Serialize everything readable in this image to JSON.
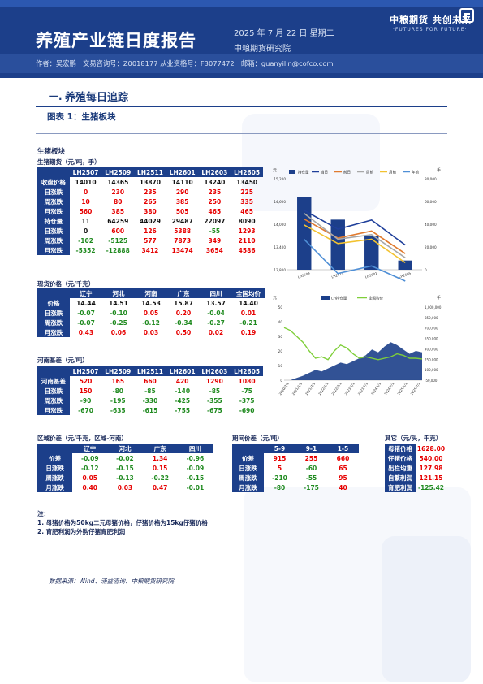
{
  "header": {
    "title": "养殖产业链日度报告",
    "date": "2025 年 7 月 22 日 星期二",
    "institute": "中粮期货研究院",
    "authors": "作者：吴宏鹏　交易咨询号：Z0018177 从业资格号：F3077472　邮箱：guanyilin@cofco.com",
    "logo_cn": "中粮期货 共创未来",
    "logo_en": "·FUTURES FOR FUTURE·"
  },
  "section": {
    "number": "一.",
    "title": "养殖每日追踪",
    "figure_title": "图表 1：生猪板块"
  },
  "board_title": "生猪板块",
  "futures": {
    "title": "生猪期货（元/吨，手）",
    "columns": [
      "",
      "LH2507",
      "LH2509",
      "LH2511",
      "LH2601",
      "LH2603",
      "LH2605"
    ],
    "rows": [
      {
        "label": "收盘价格",
        "values": [
          "14010",
          "14365",
          "13870",
          "14110",
          "13240",
          "13450"
        ],
        "tone": "blk"
      },
      {
        "label": "日涨跌",
        "values": [
          "0",
          "230",
          "235",
          "290",
          "235",
          "225"
        ],
        "tone": "red"
      },
      {
        "label": "周涨跌",
        "values": [
          "10",
          "80",
          "265",
          "385",
          "250",
          "335"
        ],
        "tone": "red"
      },
      {
        "label": "月涨跌",
        "values": [
          "560",
          "385",
          "380",
          "505",
          "465",
          "465"
        ],
        "tone": "red"
      },
      {
        "label": "持仓量",
        "values": [
          "11",
          "64259",
          "44029",
          "29487",
          "22097",
          "8090"
        ],
        "tone": "blk"
      },
      {
        "label": "日涨跌",
        "values": [
          "0",
          "600",
          "126",
          "5388",
          "-55",
          "1293"
        ],
        "tone": "mix"
      },
      {
        "label": "周涨跌",
        "values": [
          "-102",
          "-5125",
          "577",
          "7873",
          "349",
          "2110"
        ],
        "tone": "mix"
      },
      {
        "label": "月涨跌",
        "values": [
          "-5352",
          "-12888",
          "3412",
          "13474",
          "3654",
          "4586"
        ],
        "tone": "mix"
      }
    ]
  },
  "spot": {
    "title": "现货价格（元/千克）",
    "columns": [
      "",
      "辽宁",
      "河北",
      "河南",
      "广东",
      "四川",
      "全国均价"
    ],
    "rows": [
      {
        "label": "价格",
        "values": [
          "14.44",
          "14.51",
          "14.53",
          "15.87",
          "13.57",
          "14.40"
        ],
        "tone": "blk"
      },
      {
        "label": "日涨跌",
        "values": [
          "-0.07",
          "-0.10",
          "0.05",
          "0.20",
          "-0.04",
          "0.01"
        ],
        "tone": "mix"
      },
      {
        "label": "周涨跌",
        "values": [
          "-0.07",
          "-0.25",
          "-0.12",
          "-0.34",
          "-0.27",
          "-0.21"
        ],
        "tone": "mix"
      },
      {
        "label": "月涨跌",
        "values": [
          "0.43",
          "0.06",
          "0.03",
          "0.50",
          "0.02",
          "0.19"
        ],
        "tone": "red"
      }
    ]
  },
  "basis": {
    "title": "河南基差（元/吨）",
    "columns": [
      "",
      "LH2507",
      "LH2509",
      "LH2511",
      "LH2601",
      "LH2603",
      "LH2605"
    ],
    "rows": [
      {
        "label": "河南基差",
        "values": [
          "520",
          "165",
          "660",
          "420",
          "1290",
          "1080"
        ],
        "tone": "red"
      },
      {
        "label": "日涨跌",
        "values": [
          "150",
          "-80",
          "-85",
          "-140",
          "-85",
          "-75"
        ],
        "tone": "mix"
      },
      {
        "label": "周涨跌",
        "values": [
          "-90",
          "-195",
          "-330",
          "-425",
          "-355",
          "-375"
        ],
        "tone": "green"
      },
      {
        "label": "月涨跌",
        "values": [
          "-670",
          "-635",
          "-615",
          "-755",
          "-675",
          "-690"
        ],
        "tone": "green"
      }
    ]
  },
  "regional": {
    "title": "区域价差（元/千克，区域-河南）",
    "columns": [
      "",
      "辽宁",
      "河北",
      "广东",
      "四川"
    ],
    "rows": [
      {
        "label": "价差",
        "values": [
          "-0.09",
          "-0.02",
          "1.34",
          "-0.96"
        ],
        "tone": "mix"
      },
      {
        "label": "日涨跌",
        "values": [
          "-0.12",
          "-0.15",
          "0.15",
          "-0.09"
        ],
        "tone": "mix"
      },
      {
        "label": "周涨跌",
        "values": [
          "0.05",
          "-0.13",
          "-0.22",
          "-0.15"
        ],
        "tone": "mix"
      },
      {
        "label": "月涨跌",
        "values": [
          "0.40",
          "0.03",
          "0.47",
          "-0.01"
        ],
        "tone": "mix"
      }
    ]
  },
  "spreads": {
    "title": "期间价差（元/吨）",
    "columns": [
      "",
      "5-9",
      "9-1",
      "1-5"
    ],
    "rows": [
      {
        "label": "价差",
        "values": [
          "915",
          "255",
          "660"
        ],
        "tone": "red"
      },
      {
        "label": "日涨跌",
        "values": [
          "5",
          "-60",
          "65"
        ],
        "tone": "mix"
      },
      {
        "label": "周涨跌",
        "values": [
          "-210",
          "-55",
          "95"
        ],
        "tone": "mix"
      },
      {
        "label": "月涨跌",
        "values": [
          "-80",
          "-175",
          "40"
        ],
        "tone": "mix"
      }
    ]
  },
  "other": {
    "title": "其它（元/头，千克）",
    "rows": [
      {
        "label": "母猪价格",
        "value": "1628.00",
        "tone": "red"
      },
      {
        "label": "仔猪价格",
        "value": "540.00",
        "tone": "red"
      },
      {
        "label": "出栏均重",
        "value": "127.98",
        "tone": "red"
      },
      {
        "label": "自繁利润",
        "value": "121.15",
        "tone": "red"
      },
      {
        "label": "育肥利润",
        "value": "-125.42",
        "tone": "green"
      }
    ]
  },
  "notes": [
    "注：",
    "1. 母猪价格为50kg二元母猪价格，仔猪价格为15kg仔猪价格",
    "2. 育肥利润为外购仔猪育肥利润"
  ],
  "source": "数据来源：Wind、涌益咨询、中粮期货研究院",
  "colors": {
    "navy": "#1c3f8a",
    "up": "#e60000",
    "down": "#1f8a1f"
  },
  "chart_data": [
    {
      "type": "bar",
      "title": "",
      "left_axis_label": "元",
      "right_axis_label": "手",
      "categories": [
        "LH2509",
        "LH2511",
        "LH2601",
        "LH2605"
      ],
      "category_labels": [
        "LH2509",
        "LH2511",
        "LH2601",
        "LH2605"
      ],
      "bar_series": {
        "name": "持仓量",
        "values": [
          64259,
          44029,
          29487,
          8090
        ]
      },
      "line_series": [
        {
          "name": "当日",
          "values": [
            14365,
            13870,
            14110,
            13450
          ],
          "color": "#1f3f9a"
        },
        {
          "name": "前日",
          "values": [
            14135,
            13635,
            13820,
            13225
          ],
          "color": "#e07a2e"
        },
        {
          "name": "周前",
          "values": [
            14285,
            13605,
            13725,
            13115
          ],
          "color": "#a8a8a8"
        },
        {
          "name": "月前",
          "values": [
            13980,
            13490,
            13605,
            12985
          ],
          "color": "#f2c230"
        },
        {
          "name": "年前",
          "values": [
            13600,
            12700,
            12900,
            12500
          ],
          "color": "#4f8fd6"
        }
      ],
      "legend": [
        "持仓量",
        "当日",
        "前日",
        "周前",
        "月前",
        "年前"
      ],
      "left_ylim": [
        12800,
        15200
      ],
      "left_ticks": [
        "15,200",
        "14,600",
        "14,000",
        "13,400",
        "12,800"
      ],
      "right_ylim": [
        0,
        80000
      ],
      "right_ticks": [
        "80,000",
        "60,000",
        "40,000",
        "20,000",
        "0"
      ]
    },
    {
      "type": "area",
      "title": "",
      "left_axis_label": "元",
      "right_axis_label": "手",
      "legend": [
        "LH持仓量",
        "全国均价"
      ],
      "x_ticks": [
        "2020/7/1",
        "2021/1/1",
        "2021/7/1",
        "2022/1/1",
        "2022/7/1",
        "2023/1/1",
        "2023/7/1",
        "2024/1/1",
        "2024/7/1",
        "2025/1/1",
        "2025/7/1"
      ],
      "left_ylim": [
        0,
        50
      ],
      "left_ticks": [
        "50",
        "40",
        "30",
        "20",
        "10",
        "0"
      ],
      "right_ylim": [
        0,
        1000000
      ],
      "right_ticks": [
        "1,000,000",
        "850,000",
        "700,000",
        "550,000",
        "400,000",
        "250,000",
        "100,000",
        "-50,000"
      ],
      "series": [
        {
          "name": "全国均价",
          "axis": "left",
          "color": "#7fcf3a",
          "values": [
            36,
            34,
            30,
            26,
            20,
            15,
            16,
            14,
            20,
            24,
            22,
            18,
            15,
            16,
            15,
            14,
            15,
            16,
            18,
            17,
            15,
            15,
            14.5
          ]
        },
        {
          "name": "LH持仓量",
          "axis": "right",
          "color": "#1c3f8a",
          "values": [
            0,
            0,
            30000,
            60000,
            100000,
            140000,
            120000,
            160000,
            200000,
            240000,
            220000,
            260000,
            300000,
            340000,
            420000,
            380000,
            460000,
            520000,
            480000,
            420000,
            360000,
            400000,
            380000
          ]
        }
      ]
    }
  ]
}
